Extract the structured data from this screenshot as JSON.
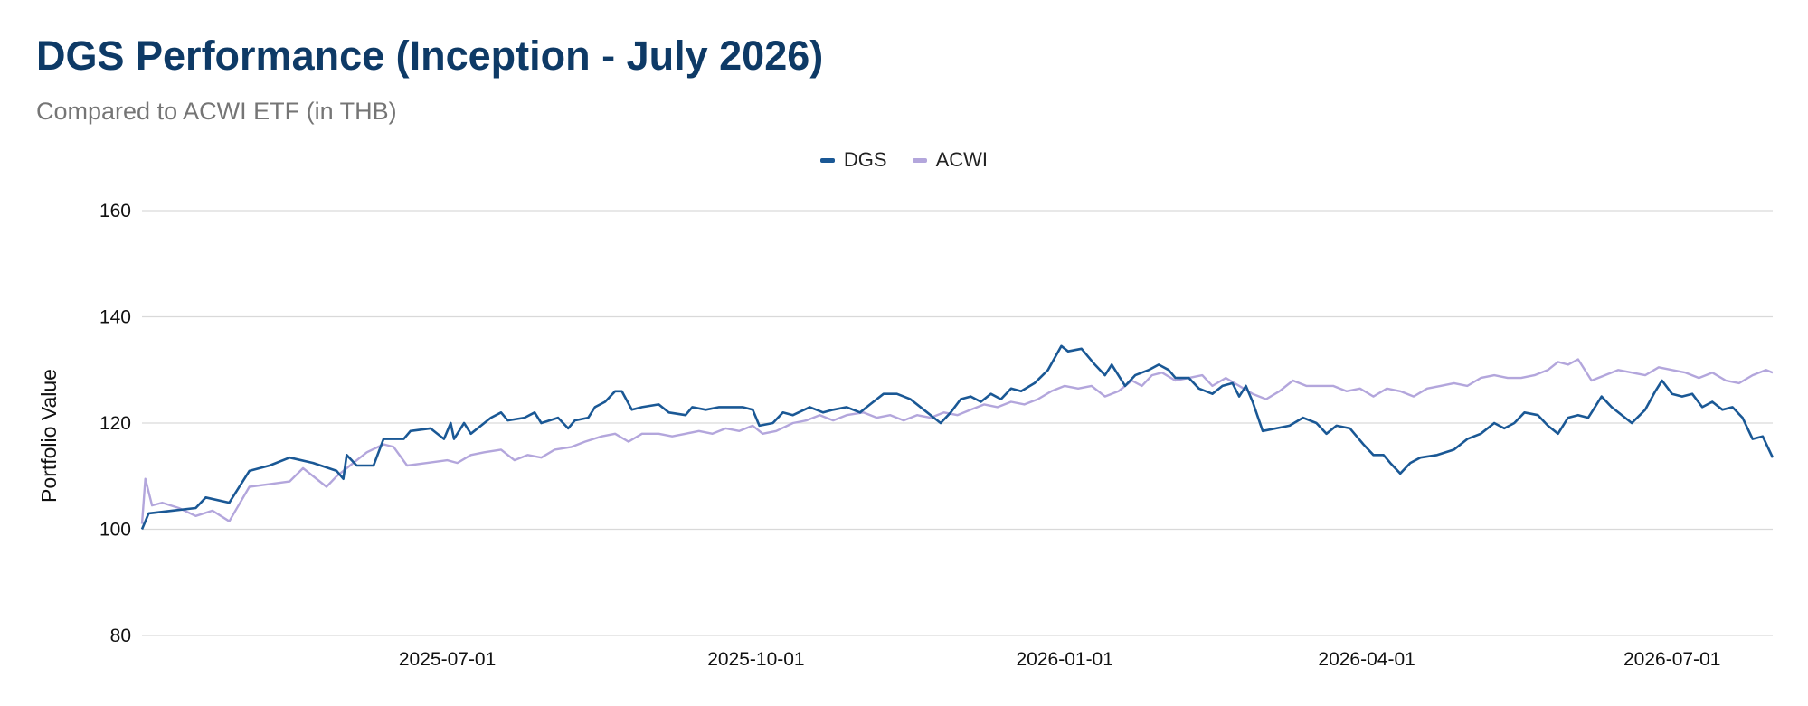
{
  "header": {
    "title": "DGS Performance (Inception - July 2026)",
    "subtitle": "Compared to ACWI ETF (in THB)"
  },
  "colors": {
    "dgs": "#1a5895",
    "acwi": "#b3a6dc",
    "grid": "#d9d9d9",
    "title": "#0e3a66"
  },
  "chart_data": {
    "type": "line",
    "title": "DGS Performance (Inception - July 2026)",
    "subtitle": "Compared to ACWI ETF (in THB)",
    "xlabel": "",
    "ylabel": "Portfolio Value",
    "ylim": [
      80,
      160
    ],
    "yticks": [
      80,
      100,
      120,
      140,
      160
    ],
    "xlim": [
      "2025-04-01",
      "2026-07-31"
    ],
    "xticks": [
      "2025-07-01",
      "2025-10-01",
      "2026-01-01",
      "2026-04-01",
      "2026-07-01"
    ],
    "grid": true,
    "legend_position": "top-center",
    "series": [
      {
        "name": "DGS",
        "color": "#1a5895",
        "points": [
          [
            "2025-04-01",
            100
          ],
          [
            "2025-04-03",
            103
          ],
          [
            "2025-04-10",
            103.5
          ],
          [
            "2025-04-17",
            104
          ],
          [
            "2025-04-20",
            106
          ],
          [
            "2025-04-27",
            105
          ],
          [
            "2025-05-03",
            111
          ],
          [
            "2025-05-09",
            112
          ],
          [
            "2025-05-15",
            113.5
          ],
          [
            "2025-05-22",
            112.5
          ],
          [
            "2025-05-29",
            111
          ],
          [
            "2025-05-31",
            109.5
          ],
          [
            "2025-06-01",
            114
          ],
          [
            "2025-06-04",
            112
          ],
          [
            "2025-06-09",
            112
          ],
          [
            "2025-06-12",
            117
          ],
          [
            "2025-06-18",
            117
          ],
          [
            "2025-06-20",
            118.5
          ],
          [
            "2025-06-26",
            119
          ],
          [
            "2025-06-30",
            117
          ],
          [
            "2025-07-02",
            120
          ],
          [
            "2025-07-03",
            117
          ],
          [
            "2025-07-06",
            120
          ],
          [
            "2025-07-08",
            118
          ],
          [
            "2025-07-14",
            121
          ],
          [
            "2025-07-17",
            122
          ],
          [
            "2025-07-19",
            120.5
          ],
          [
            "2025-07-24",
            121
          ],
          [
            "2025-07-27",
            122
          ],
          [
            "2025-07-29",
            120
          ],
          [
            "2025-08-03",
            121
          ],
          [
            "2025-08-06",
            119
          ],
          [
            "2025-08-08",
            120.5
          ],
          [
            "2025-08-12",
            121
          ],
          [
            "2025-08-14",
            123
          ],
          [
            "2025-08-17",
            124
          ],
          [
            "2025-08-20",
            126
          ],
          [
            "2025-08-22",
            126
          ],
          [
            "2025-08-25",
            122.5
          ],
          [
            "2025-08-28",
            123
          ],
          [
            "2025-09-02",
            123.5
          ],
          [
            "2025-09-05",
            122
          ],
          [
            "2025-09-10",
            121.5
          ],
          [
            "2025-09-12",
            123
          ],
          [
            "2025-09-16",
            122.5
          ],
          [
            "2025-09-20",
            123
          ],
          [
            "2025-09-27",
            123
          ],
          [
            "2025-09-30",
            122.5
          ],
          [
            "2025-10-02",
            119.5
          ],
          [
            "2025-10-06",
            120
          ],
          [
            "2025-10-09",
            122
          ],
          [
            "2025-10-12",
            121.5
          ],
          [
            "2025-10-17",
            123
          ],
          [
            "2025-10-21",
            122
          ],
          [
            "2025-10-24",
            122.5
          ],
          [
            "2025-10-28",
            123
          ],
          [
            "2025-11-01",
            122
          ],
          [
            "2025-11-04",
            123.5
          ],
          [
            "2025-11-08",
            125.5
          ],
          [
            "2025-11-12",
            125.5
          ],
          [
            "2025-11-16",
            124.5
          ],
          [
            "2025-11-20",
            122.5
          ],
          [
            "2025-11-23",
            121
          ],
          [
            "2025-11-25",
            120
          ],
          [
            "2025-11-28",
            122
          ],
          [
            "2025-12-01",
            124.5
          ],
          [
            "2025-12-04",
            125
          ],
          [
            "2025-12-07",
            124
          ],
          [
            "2025-12-10",
            125.5
          ],
          [
            "2025-12-13",
            124.5
          ],
          [
            "2025-12-16",
            126.5
          ],
          [
            "2025-12-19",
            126
          ],
          [
            "2025-12-23",
            127.5
          ],
          [
            "2025-12-27",
            130
          ],
          [
            "2025-12-31",
            134.5
          ],
          [
            "2026-01-02",
            133.5
          ],
          [
            "2026-01-06",
            134
          ],
          [
            "2026-01-10",
            131
          ],
          [
            "2026-01-13",
            129
          ],
          [
            "2026-01-15",
            131
          ],
          [
            "2026-01-19",
            127
          ],
          [
            "2026-01-22",
            129
          ],
          [
            "2026-01-26",
            130
          ],
          [
            "2026-01-29",
            131
          ],
          [
            "2026-02-01",
            130
          ],
          [
            "2026-02-03",
            128.5
          ],
          [
            "2026-02-07",
            128.5
          ],
          [
            "2026-02-10",
            126.5
          ],
          [
            "2026-02-14",
            125.5
          ],
          [
            "2026-02-17",
            127
          ],
          [
            "2026-02-20",
            127.5
          ],
          [
            "2026-02-22",
            125
          ],
          [
            "2026-02-24",
            127
          ],
          [
            "2026-02-26",
            124
          ],
          [
            "2026-03-01",
            118.5
          ],
          [
            "2026-03-05",
            119
          ],
          [
            "2026-03-09",
            119.5
          ],
          [
            "2026-03-13",
            121
          ],
          [
            "2026-03-17",
            120
          ],
          [
            "2026-03-20",
            118
          ],
          [
            "2026-03-23",
            119.5
          ],
          [
            "2026-03-27",
            119
          ],
          [
            "2026-03-31",
            116
          ],
          [
            "2026-04-03",
            114
          ],
          [
            "2026-04-06",
            114
          ],
          [
            "2026-04-08",
            112.5
          ],
          [
            "2026-04-11",
            110.5
          ],
          [
            "2026-04-14",
            112.5
          ],
          [
            "2026-04-17",
            113.5
          ],
          [
            "2026-04-22",
            114
          ],
          [
            "2026-04-27",
            115
          ],
          [
            "2026-05-01",
            117
          ],
          [
            "2026-05-05",
            118
          ],
          [
            "2026-05-09",
            120
          ],
          [
            "2026-05-12",
            119
          ],
          [
            "2026-05-15",
            120
          ],
          [
            "2026-05-18",
            122
          ],
          [
            "2026-05-22",
            121.5
          ],
          [
            "2026-05-25",
            119.5
          ],
          [
            "2026-05-28",
            118
          ],
          [
            "2026-05-31",
            121
          ],
          [
            "2026-06-03",
            121.5
          ],
          [
            "2026-06-06",
            121
          ],
          [
            "2026-06-08",
            123
          ],
          [
            "2026-06-10",
            125
          ],
          [
            "2026-06-13",
            123
          ],
          [
            "2026-06-17",
            121
          ],
          [
            "2026-06-19",
            120
          ],
          [
            "2026-06-23",
            122.5
          ],
          [
            "2026-06-26",
            126
          ],
          [
            "2026-06-28",
            128
          ],
          [
            "2026-07-01",
            125.5
          ],
          [
            "2026-07-04",
            125
          ],
          [
            "2026-07-07",
            125.5
          ],
          [
            "2026-07-10",
            123
          ],
          [
            "2026-07-13",
            124
          ],
          [
            "2026-07-16",
            122.5
          ],
          [
            "2026-07-19",
            123
          ],
          [
            "2026-07-22",
            121
          ],
          [
            "2026-07-25",
            117
          ],
          [
            "2026-07-28",
            117.5
          ],
          [
            "2026-07-31",
            113.5
          ]
        ]
      },
      {
        "name": "ACWI",
        "color": "#b3a6dc",
        "points": [
          [
            "2025-04-01",
            101
          ],
          [
            "2025-04-02",
            109.5
          ],
          [
            "2025-04-04",
            104.5
          ],
          [
            "2025-04-07",
            105
          ],
          [
            "2025-04-12",
            104
          ],
          [
            "2025-04-17",
            102.5
          ],
          [
            "2025-04-22",
            103.5
          ],
          [
            "2025-04-27",
            101.5
          ],
          [
            "2025-05-03",
            108
          ],
          [
            "2025-05-09",
            108.5
          ],
          [
            "2025-05-15",
            109
          ],
          [
            "2025-05-19",
            111.5
          ],
          [
            "2025-05-26",
            108
          ],
          [
            "2025-05-29",
            110
          ],
          [
            "2025-06-02",
            112
          ],
          [
            "2025-06-07",
            114.5
          ],
          [
            "2025-06-12",
            116
          ],
          [
            "2025-06-15",
            115.5
          ],
          [
            "2025-06-19",
            112
          ],
          [
            "2025-06-25",
            112.5
          ],
          [
            "2025-07-01",
            113
          ],
          [
            "2025-07-04",
            112.5
          ],
          [
            "2025-07-08",
            114
          ],
          [
            "2025-07-12",
            114.5
          ],
          [
            "2025-07-17",
            115
          ],
          [
            "2025-07-21",
            113
          ],
          [
            "2025-07-25",
            114
          ],
          [
            "2025-07-29",
            113.5
          ],
          [
            "2025-08-02",
            115
          ],
          [
            "2025-08-07",
            115.5
          ],
          [
            "2025-08-11",
            116.5
          ],
          [
            "2025-08-16",
            117.5
          ],
          [
            "2025-08-20",
            118
          ],
          [
            "2025-08-24",
            116.5
          ],
          [
            "2025-08-28",
            118
          ],
          [
            "2025-09-02",
            118
          ],
          [
            "2025-09-06",
            117.5
          ],
          [
            "2025-09-10",
            118
          ],
          [
            "2025-09-14",
            118.5
          ],
          [
            "2025-09-18",
            118
          ],
          [
            "2025-09-22",
            119
          ],
          [
            "2025-09-26",
            118.5
          ],
          [
            "2025-09-30",
            119.5
          ],
          [
            "2025-10-03",
            118
          ],
          [
            "2025-10-07",
            118.5
          ],
          [
            "2025-10-12",
            120
          ],
          [
            "2025-10-16",
            120.5
          ],
          [
            "2025-10-20",
            121.5
          ],
          [
            "2025-10-24",
            120.5
          ],
          [
            "2025-10-28",
            121.5
          ],
          [
            "2025-11-02",
            122
          ],
          [
            "2025-11-06",
            121
          ],
          [
            "2025-11-10",
            121.5
          ],
          [
            "2025-11-14",
            120.5
          ],
          [
            "2025-11-18",
            121.5
          ],
          [
            "2025-11-22",
            121
          ],
          [
            "2025-11-26",
            122
          ],
          [
            "2025-11-30",
            121.5
          ],
          [
            "2025-12-04",
            122.5
          ],
          [
            "2025-12-08",
            123.5
          ],
          [
            "2025-12-12",
            123
          ],
          [
            "2025-12-16",
            124
          ],
          [
            "2025-12-20",
            123.5
          ],
          [
            "2025-12-24",
            124.5
          ],
          [
            "2025-12-28",
            126
          ],
          [
            "2026-01-01",
            127
          ],
          [
            "2026-01-05",
            126.5
          ],
          [
            "2026-01-09",
            127
          ],
          [
            "2026-01-13",
            125
          ],
          [
            "2026-01-17",
            126
          ],
          [
            "2026-01-21",
            128
          ],
          [
            "2026-01-24",
            127
          ],
          [
            "2026-01-27",
            129
          ],
          [
            "2026-01-30",
            129.5
          ],
          [
            "2026-02-03",
            128
          ],
          [
            "2026-02-07",
            128.5
          ],
          [
            "2026-02-11",
            129
          ],
          [
            "2026-02-14",
            127
          ],
          [
            "2026-02-18",
            128.5
          ],
          [
            "2026-02-22",
            127
          ],
          [
            "2026-02-26",
            125.5
          ],
          [
            "2026-03-02",
            124.5
          ],
          [
            "2026-03-06",
            126
          ],
          [
            "2026-03-10",
            128
          ],
          [
            "2026-03-14",
            127
          ],
          [
            "2026-03-18",
            127
          ],
          [
            "2026-03-22",
            127
          ],
          [
            "2026-03-26",
            126
          ],
          [
            "2026-03-30",
            126.5
          ],
          [
            "2026-04-03",
            125
          ],
          [
            "2026-04-07",
            126.5
          ],
          [
            "2026-04-11",
            126
          ],
          [
            "2026-04-15",
            125
          ],
          [
            "2026-04-19",
            126.5
          ],
          [
            "2026-04-23",
            127
          ],
          [
            "2026-04-27",
            127.5
          ],
          [
            "2026-05-01",
            127
          ],
          [
            "2026-05-05",
            128.5
          ],
          [
            "2026-05-09",
            129
          ],
          [
            "2026-05-13",
            128.5
          ],
          [
            "2026-05-17",
            128.5
          ],
          [
            "2026-05-21",
            129
          ],
          [
            "2026-05-25",
            130
          ],
          [
            "2026-05-28",
            131.5
          ],
          [
            "2026-05-31",
            131
          ],
          [
            "2026-06-03",
            132
          ],
          [
            "2026-06-07",
            128
          ],
          [
            "2026-06-11",
            129
          ],
          [
            "2026-06-15",
            130
          ],
          [
            "2026-06-19",
            129.5
          ],
          [
            "2026-06-23",
            129
          ],
          [
            "2026-06-27",
            130.5
          ],
          [
            "2026-07-01",
            130
          ],
          [
            "2026-07-05",
            129.5
          ],
          [
            "2026-07-09",
            128.5
          ],
          [
            "2026-07-13",
            129.5
          ],
          [
            "2026-07-17",
            128
          ],
          [
            "2026-07-21",
            127.5
          ],
          [
            "2026-07-25",
            129
          ],
          [
            "2026-07-29",
            130
          ],
          [
            "2026-07-31",
            129.5
          ]
        ]
      }
    ]
  }
}
